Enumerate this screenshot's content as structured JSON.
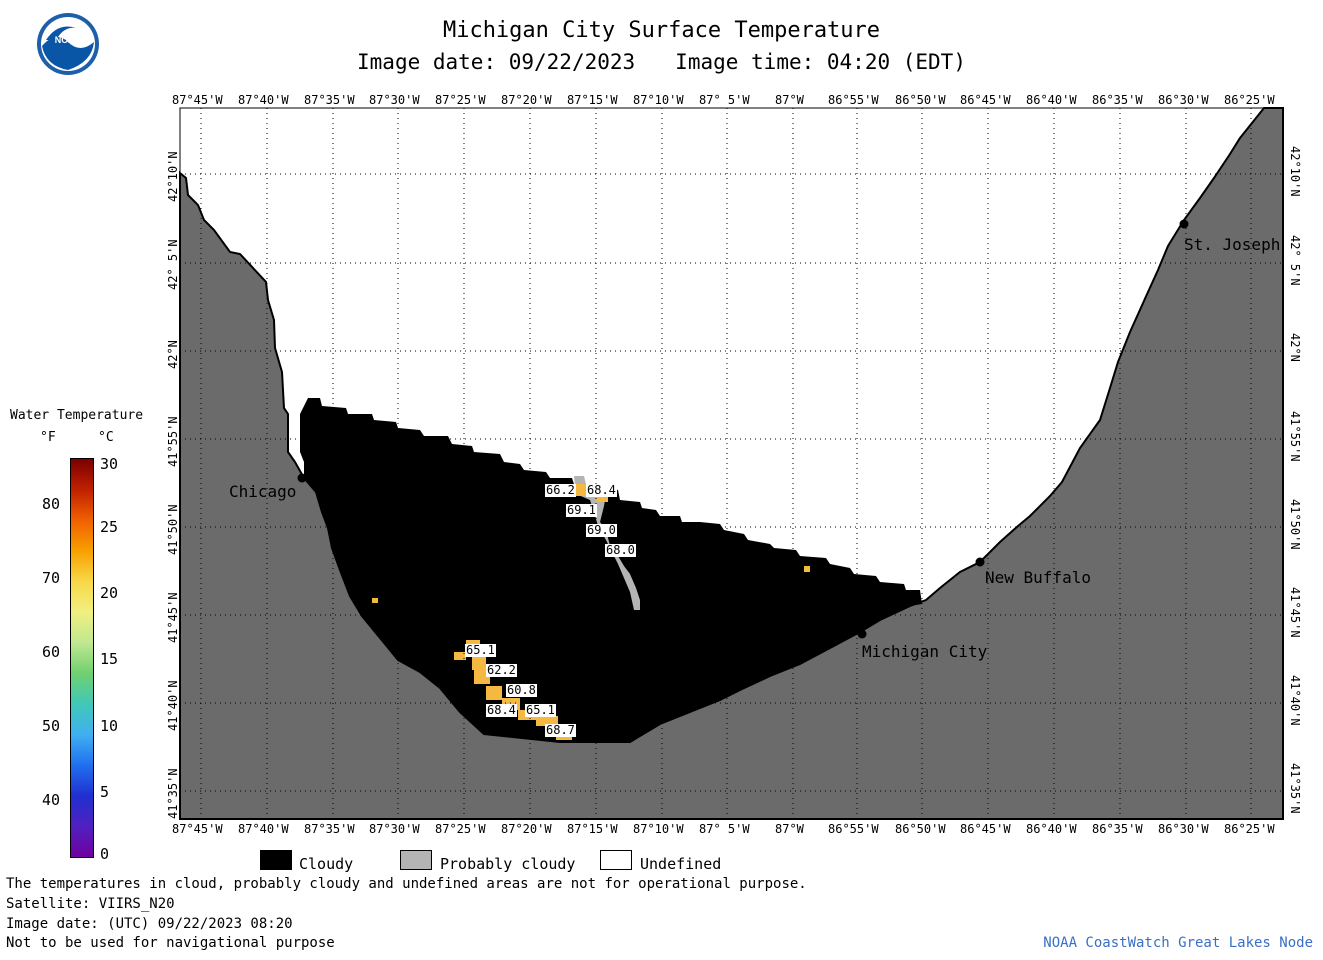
{
  "header": {
    "title": "Michigan City Surface Temperature",
    "image_date": "Image date: 09/22/2023",
    "image_time": "Image time: 04:20 (EDT)"
  },
  "logo": {
    "text": "NOAA",
    "icon": "noaa-logo-icon"
  },
  "map": {
    "lon_ticks_top": [
      "87°45'W",
      "87°40'W",
      "87°35'W",
      "87°30'W",
      "87°25'W",
      "87°20'W",
      "87°15'W",
      "87°10'W",
      "87° 5'W",
      "87°W",
      "86°55'W",
      "86°50'W",
      "86°45'W",
      "86°40'W",
      "86°35'W",
      "86°30'W",
      "86°25'W"
    ],
    "lon_ticks_bottom": [
      "87°45'W",
      "87°40'W",
      "87°35'W",
      "87°30'W",
      "87°25'W",
      "87°20'W",
      "87°15'W",
      "87°10'W",
      "87° 5'W",
      "87°W",
      "86°55'W",
      "86°50'W",
      "86°45'W",
      "86°40'W",
      "86°35'W",
      "86°30'W",
      "86°25'W"
    ],
    "lat_ticks": [
      "42°10'N",
      "42° 5'N",
      "42°N",
      "41°55'N",
      "41°50'N",
      "41°45'N",
      "41°40'N",
      "41°35'N"
    ],
    "cities": [
      "Chicago",
      "St. Joseph",
      "New Buffalo",
      "Michigan City"
    ],
    "temperature_labels": [
      "66.2",
      "68.4",
      "69.1",
      "69.0",
      "68.0",
      "65.1",
      "62.2",
      "60.8",
      "68.4",
      "65.1",
      "68.7"
    ],
    "colors": {
      "land": "#6b6b6b",
      "cloudy": "#000000",
      "probably_cloudy": "#b4b4b4",
      "undefined": "#ffffff",
      "warm_pixels": "#f5b942"
    }
  },
  "colorbar": {
    "title": "Water Temperature",
    "unit_f": "°F",
    "unit_c": "°C",
    "f_values": [
      "80",
      "70",
      "60",
      "50",
      "40"
    ],
    "c_values": [
      "30",
      "25",
      "20",
      "15",
      "10",
      "5",
      "0"
    ]
  },
  "legend": {
    "cloudy": "Cloudy",
    "probably_cloudy": "Probably cloudy",
    "undefined": "Undefined"
  },
  "footer": {
    "line1": "The temperatures in cloud, probably cloudy and undefined areas are not for operational purpose.",
    "line2": "Satellite: VIIRS_N20",
    "line3": "Image date: (UTC) 09/22/2023  08:20",
    "line4": "Not to be used for navigational purpose",
    "credit": "NOAA CoastWatch Great Lakes Node"
  }
}
